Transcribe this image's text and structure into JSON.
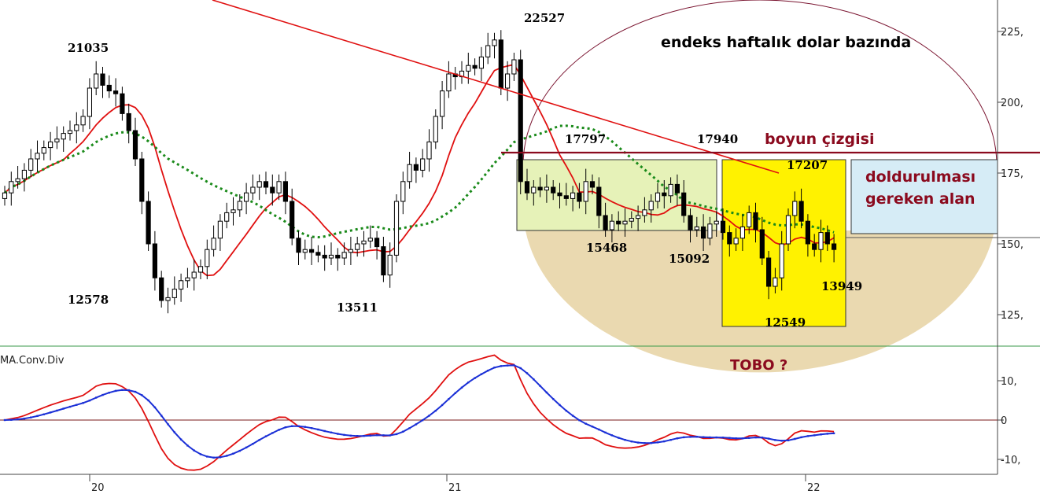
{
  "chart_data": [
    {
      "type": "candlestick",
      "title": "endeks haftalık dolar bazında",
      "y_ticks": [
        125,
        150,
        175,
        200,
        225
      ],
      "y_tick_labels": [
        "125,",
        "150,",
        "175,",
        "200,",
        "225,"
      ],
      "x_tick_labels": [
        "20",
        "21",
        "22"
      ],
      "annotations": [
        {
          "text": "21035",
          "color": "#000000"
        },
        {
          "text": "12578",
          "color": "#000000"
        },
        {
          "text": "13511",
          "color": "#000000"
        },
        {
          "text": "22527",
          "color": "#000000"
        },
        {
          "text": "17797",
          "color": "#000000"
        },
        {
          "text": "17940",
          "color": "#000000"
        },
        {
          "text": "17207",
          "color": "#000000"
        },
        {
          "text": "15468",
          "color": "#000000"
        },
        {
          "text": "15092",
          "color": "#000000"
        },
        {
          "text": "13949",
          "color": "#000000"
        },
        {
          "text": "12549",
          "color": "#000000"
        },
        {
          "text": "boyun çizgisi",
          "color": "#8b0a1e"
        },
        {
          "text": "doldurulması",
          "color": "#8b0a1e"
        },
        {
          "text": "gereken alan",
          "color": "#8b0a1e"
        }
      ],
      "series": [
        {
          "name": "price",
          "style": "candles",
          "color_up": "#ffffff",
          "color_down": "#000000"
        },
        {
          "name": "ma_short",
          "style": "line",
          "color": "#e01010"
        },
        {
          "name": "ma_long",
          "style": "dotted",
          "color": "#1a8a1a"
        }
      ],
      "neckline_value": 181,
      "grid": false,
      "legend": "none"
    },
    {
      "type": "line",
      "title": "MA.Conv.Div",
      "annotation": "TOBO ?",
      "y_ticks": [
        -10,
        0,
        10
      ],
      "y_tick_labels": [
        "-10,",
        "0",
        "10,"
      ],
      "series": [
        {
          "style": "line",
          "color": "#e01010"
        },
        {
          "style": "marked-line",
          "color": "#1a2fd6"
        }
      ],
      "grid": false,
      "legend": "none"
    }
  ]
}
